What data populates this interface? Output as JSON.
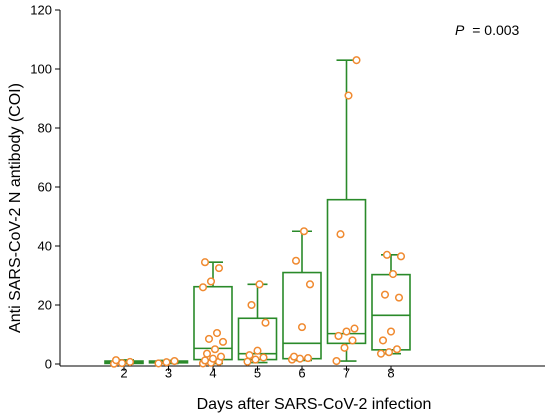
{
  "chart_data": {
    "type": "box",
    "ylabel": "Anti SARS-CoV-2 N antibody (COI)",
    "xlabel": "Days after SARS-CoV-2 infection",
    "annotation": {
      "p_label": "P",
      "p_value": "= 0.003"
    },
    "ylim": [
      0,
      120
    ],
    "yticks": [
      0,
      20,
      40,
      60,
      80,
      100,
      120
    ],
    "colors": {
      "box": "#2a8a2a",
      "point": "#f08a30",
      "axis": "#000000"
    },
    "categories": [
      "2",
      "3",
      "4",
      "5",
      "6",
      "7",
      "8"
    ],
    "boxes": [
      {
        "day": "2",
        "min": 0.1,
        "q1": 0.2,
        "median": 0.6,
        "q3": 1.0,
        "max": 1.4
      },
      {
        "day": "3",
        "min": 0.2,
        "q1": 0.4,
        "median": 0.7,
        "q3": 1.0,
        "max": 1.2
      },
      {
        "day": "4",
        "min": 0.2,
        "q1": 1.5,
        "median": 5.3,
        "q3": 26.2,
        "max": 34.5
      },
      {
        "day": "5",
        "min": 0.5,
        "q1": 1.5,
        "median": 3.5,
        "q3": 15.5,
        "max": 27.0
      },
      {
        "day": "6",
        "min": 1.2,
        "q1": 1.8,
        "median": 7.0,
        "q3": 31.0,
        "max": 45.0
      },
      {
        "day": "7",
        "min": 1.0,
        "q1": 7.0,
        "median": 10.3,
        "q3": 55.7,
        "max": 103.0
      },
      {
        "day": "8",
        "min": 3.5,
        "q1": 4.8,
        "median": 16.5,
        "q3": 30.3,
        "max": 37.0
      }
    ],
    "points": [
      {
        "day": "2",
        "values": [
          0.1,
          0.3,
          0.7,
          1.3
        ]
      },
      {
        "day": "3",
        "values": [
          0.2,
          0.6,
          1.0
        ]
      },
      {
        "day": "4",
        "values": [
          0.2,
          0.4,
          0.8,
          1.2,
          1.8,
          2.5,
          3.5,
          5.0,
          7.5,
          8.5,
          10.5,
          26.0,
          28.0,
          32.5,
          34.5
        ]
      },
      {
        "day": "5",
        "values": [
          0.8,
          1.5,
          2.2,
          3.0,
          4.5,
          14.0,
          20.0,
          27.0
        ]
      },
      {
        "day": "6",
        "values": [
          1.5,
          1.8,
          2.0,
          2.5,
          12.5,
          27.0,
          35.0,
          45.0
        ]
      },
      {
        "day": "7",
        "values": [
          1.0,
          5.5,
          8.0,
          9.5,
          11.0,
          12.0,
          44.0,
          91.0,
          103.0
        ]
      },
      {
        "day": "8",
        "values": [
          3.5,
          4.0,
          5.0,
          8.0,
          11.0,
          22.5,
          23.5,
          30.5,
          36.5,
          37.0
        ]
      }
    ]
  }
}
